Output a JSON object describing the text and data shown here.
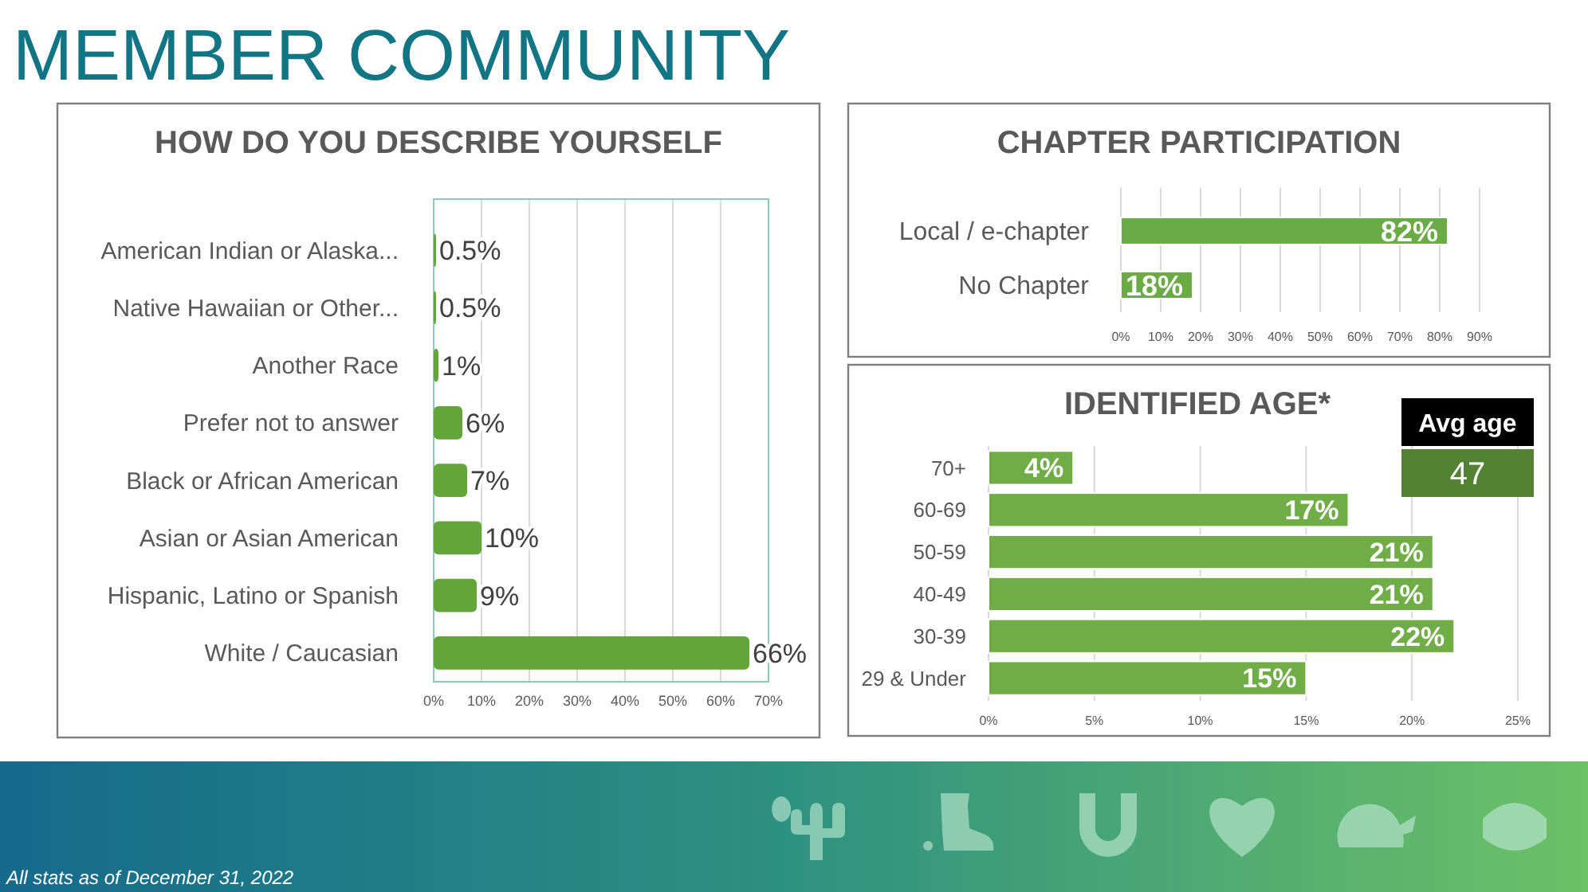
{
  "chart_data": [
    {
      "type": "bar",
      "orientation": "horizontal",
      "title": "HOW DO YOU DESCRIBE YOURSELF",
      "categories": [
        "American Indian or Alaska...",
        "Native Hawaiian or Other...",
        "Another Race",
        "Prefer not to answer",
        "Black or African American",
        "Asian or Asian American",
        "Hispanic, Latino or Spanish",
        "White / Caucasian"
      ],
      "values": [
        0.5,
        0.5,
        1,
        6,
        7,
        10,
        9,
        66
      ],
      "color": "#62a63a",
      "value_labels": [
        "0.5%",
        "0.5%",
        "1%",
        "6%",
        "7%",
        "10%",
        "9%",
        "66%"
      ],
      "xlim": [
        0,
        70
      ],
      "xticks": [
        {
          "value": 0,
          "label": "0%"
        },
        {
          "value": 10,
          "label": "10%"
        },
        {
          "value": 20,
          "label": "20%"
        },
        {
          "value": 30,
          "label": "30%"
        },
        {
          "value": 40,
          "label": "40%"
        },
        {
          "value": 50,
          "label": "50%"
        },
        {
          "value": 60,
          "label": "60%"
        },
        {
          "value": 70,
          "label": "70%"
        }
      ],
      "grid": "x",
      "annotations": [
        "MEMBER COMMUNITY",
        "All stats as of December 31, 2022"
      ]
    },
    {
      "type": "bar",
      "orientation": "horizontal",
      "title": "CHAPTER PARTICIPATION",
      "categories": [
        "Local / e-chapter",
        "No Chapter"
      ],
      "values": [
        82,
        18
      ],
      "color": "#6aab45",
      "value_labels": [
        "82%",
        "18%"
      ],
      "xlim": [
        0,
        90
      ],
      "xticks": [
        {
          "value": 0,
          "label": "0%"
        },
        {
          "value": 10,
          "label": "10%"
        },
        {
          "value": 20,
          "label": "20%"
        },
        {
          "value": 30,
          "label": "30%"
        },
        {
          "value": 40,
          "label": "40%"
        },
        {
          "value": 50,
          "label": "50%"
        },
        {
          "value": 60,
          "label": "60%"
        },
        {
          "value": 70,
          "label": "70%"
        },
        {
          "value": 80,
          "label": "80%"
        },
        {
          "value": 90,
          "label": "90%"
        }
      ],
      "grid": "x"
    },
    {
      "type": "bar",
      "orientation": "horizontal",
      "title": "IDENTIFIED AGE*",
      "categories": [
        "70+",
        "60-69",
        "50-59",
        "40-49",
        "30-39",
        "29 & Under"
      ],
      "values": [
        4,
        17,
        21,
        21,
        22,
        15
      ],
      "color": "#70ad47",
      "value_labels": [
        "4%",
        "17%",
        "21%",
        "21%",
        "22%",
        "15%"
      ],
      "xlim": [
        0,
        25
      ],
      "xticks": [
        {
          "value": 0,
          "label": "0%"
        },
        {
          "value": 5,
          "label": "5%"
        },
        {
          "value": 10,
          "label": "10%"
        },
        {
          "value": 15,
          "label": "15%"
        },
        {
          "value": 20,
          "label": "20%"
        },
        {
          "value": 25,
          "label": "25%"
        }
      ],
      "grid": "x",
      "annotations": [
        "Avg age",
        "47"
      ]
    }
  ]
}
